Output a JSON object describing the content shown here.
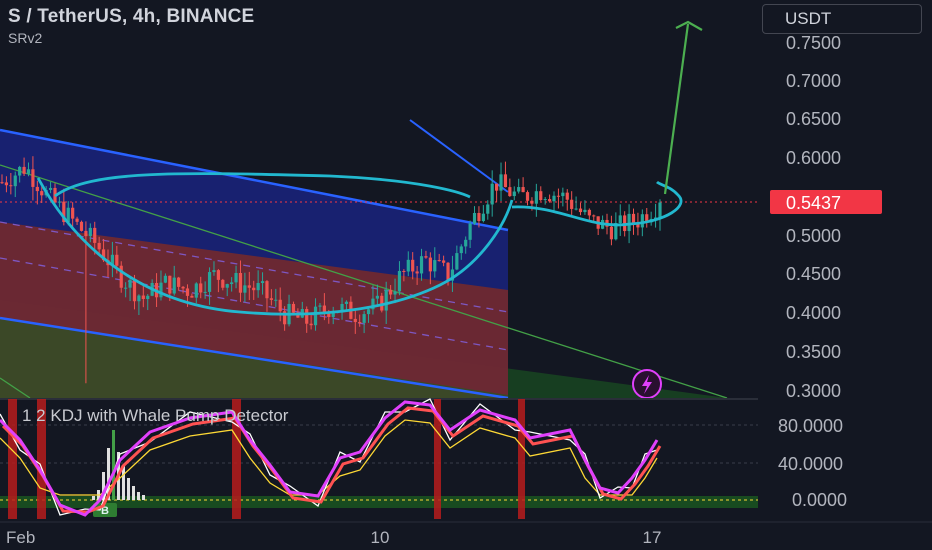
{
  "header": {
    "symbol_title": "S / TetherUS, 4h, BINANCE",
    "indicator": "SRv2",
    "currency_button": "USDT"
  },
  "price_axis": {
    "ticks": [
      "0.7500",
      "0.7000",
      "0.6500",
      "0.6000",
      "0.5000",
      "0.4500",
      "0.4000",
      "0.3500",
      "0.3000"
    ],
    "current_price": "0.5437"
  },
  "oscillator": {
    "title": "1 2 KDJ with Whale Pump Detector",
    "ticks": [
      "80.0000",
      "40.0000",
      "0.0000"
    ],
    "signal_label": "B"
  },
  "time_axis": {
    "labels": [
      "Feb",
      "10",
      "17"
    ]
  },
  "colors": {
    "background": "#131722",
    "up_candle": "#26a69a",
    "down_candle": "#ef5350",
    "channel_blue": "#2962ff",
    "price_badge": "#f23645",
    "cup_handle": "#22b8cf",
    "projection_arrow": "#4caf50",
    "k_line": "#e040fb",
    "d_line": "#ffffff",
    "j_line": "#ffeb3b",
    "ma_line": "#ff5252"
  },
  "icons": {
    "alert": "lightning-bolt-icon"
  },
  "chart_data": {
    "type": "candlestick",
    "symbol": "S / TetherUS",
    "interval": "4h",
    "exchange": "BINANCE",
    "current_price": 0.5437,
    "ylim": [
      0.29,
      0.79
    ],
    "price_ticks": [
      0.75,
      0.7,
      0.65,
      0.6,
      0.5,
      0.45,
      0.4,
      0.35,
      0.3
    ],
    "x_labels": [
      "Feb",
      "10",
      "17"
    ],
    "approx_path": [
      0.57,
      0.59,
      0.55,
      0.52,
      0.49,
      0.45,
      0.42,
      0.44,
      0.43,
      0.45,
      0.44,
      0.43,
      0.4,
      0.39,
      0.41,
      0.4,
      0.41,
      0.45,
      0.47,
      0.45,
      0.52,
      0.57,
      0.55,
      0.56,
      0.55,
      0.52,
      0.51,
      0.52,
      0.5437
    ],
    "annotations": [
      "descending channel",
      "cup and handle",
      "projection arrow to ~0.77"
    ],
    "oscillator": {
      "name": "1 2 KDJ with Whale Pump Detector",
      "ylim": [
        -10,
        105
      ],
      "ticks": [
        80,
        40,
        0
      ]
    }
  }
}
